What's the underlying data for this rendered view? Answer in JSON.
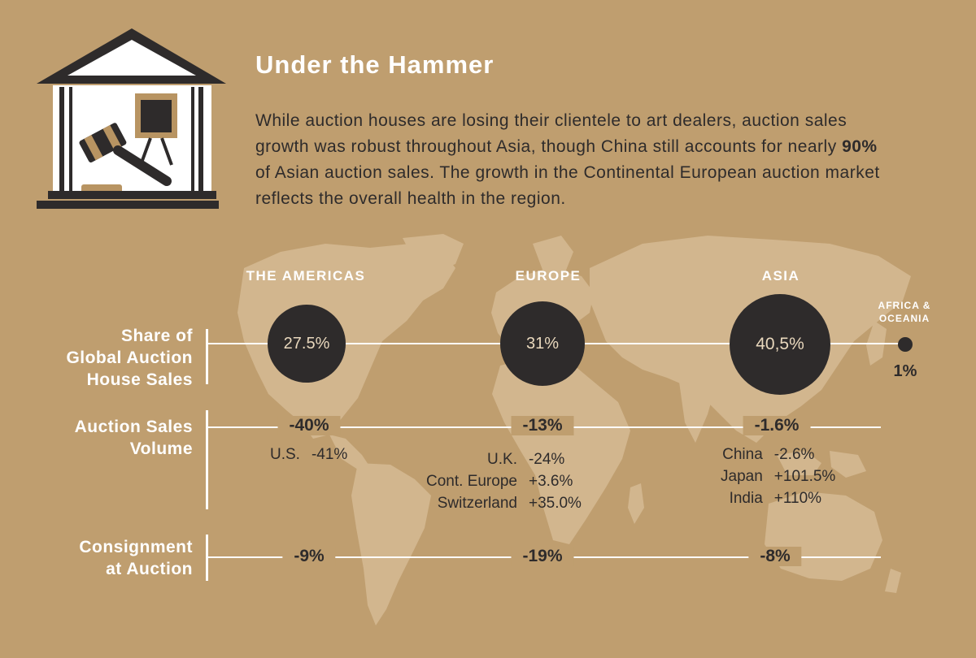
{
  "title": "Under the Hammer",
  "intro": {
    "part1": "While auction houses are losing their clientele to art dealers, auction sales growth was robust throughout Asia, though China still accounts for nearly ",
    "bold": "90%",
    "part2": " of Asian auction sales. The growth in the Continental European auction market reflects the overall health in the region."
  },
  "icon": "auction-house-icon",
  "colors": {
    "background": "#bf9e6f",
    "map": "#d2b68e",
    "dark": "#2e2b2b",
    "light": "#ffffff",
    "circle_text": "#e9d8bd"
  },
  "regions": {
    "americas": "THE AMERICAS",
    "europe": "EUROPE",
    "asia": "ASIA",
    "africa_line1": "AFRICA &",
    "africa_line2": "OCEANIA"
  },
  "rows": {
    "share": {
      "line1": "Share of",
      "line2": "Global Auction",
      "line3": "House Sales"
    },
    "volume": {
      "line1": "Auction Sales",
      "line2": "Volume"
    },
    "consignment": {
      "line1": "Consignment",
      "line2": "at Auction"
    }
  },
  "share": {
    "americas": "27.5%",
    "europe": "31%",
    "asia": "40,5%",
    "africa": "1%"
  },
  "volume": {
    "americas": "-40%",
    "europe": "-13%",
    "asia": "-1.6%"
  },
  "volume_details": {
    "americas": [
      {
        "k": "U.S.",
        "v": "-41%"
      }
    ],
    "europe": [
      {
        "k": "U.K.",
        "v": "-24%"
      },
      {
        "k": "Cont. Europe",
        "v": "+3.6%"
      },
      {
        "k": "Switzerland",
        "v": "+35.0%"
      }
    ],
    "asia": [
      {
        "k": "China",
        "v": "-2.6%"
      },
      {
        "k": "Japan",
        "v": "+101.5%"
      },
      {
        "k": "India",
        "v": "+110%"
      }
    ]
  },
  "consignment": {
    "americas": "-9%",
    "europe": "-19%",
    "asia": "-8%"
  }
}
